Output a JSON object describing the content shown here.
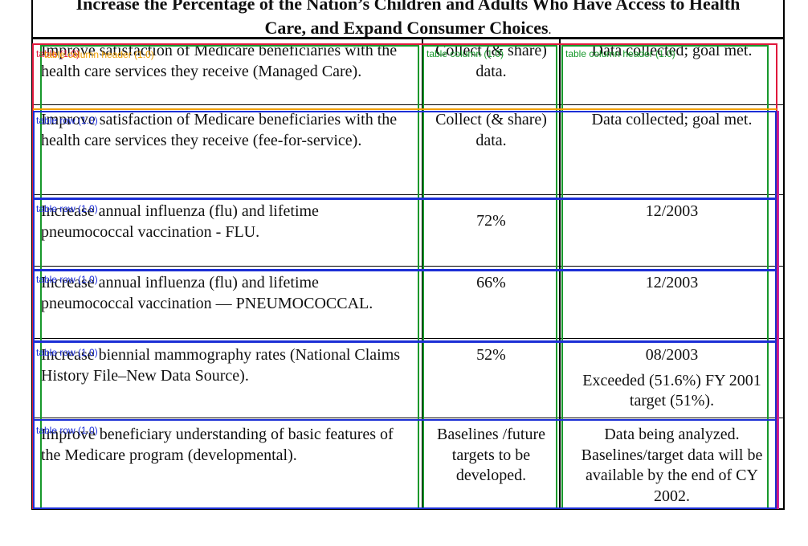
{
  "heading": {
    "line1": "Increase the Percentage of the Nation’s Children and Adults Who Have Access to Health",
    "line2": "Care, and Expand Consumer Choices",
    "line2_suffix": "."
  },
  "rows": [
    {
      "goal": "Improve satisfaction of Medicare beneficiaries with the health care services they receive (Managed Care).",
      "target": "Collect (& share) data.",
      "result": [
        "Data collected; goal met."
      ]
    },
    {
      "goal": "Improve satisfaction of Medicare beneficiaries with the health care services they receive (fee-for-service).",
      "target": "Collect (& share) data.",
      "result": [
        "Data collected; goal met."
      ]
    },
    {
      "goal": "Increase annual influenza (flu) and lifetime pneumococcal vaccination - FLU.",
      "target": "72%",
      "result": [
        "12/2003"
      ]
    },
    {
      "goal": "Increase annual influenza (flu) and lifetime pneumococcal vaccination — PNEUMOCOCCAL.",
      "target": "66%",
      "result": [
        "12/2003"
      ]
    },
    {
      "goal": "Increase biennial mammography rates (National Claims History File–New Data Source).",
      "target": "52%",
      "result": [
        "08/2003",
        "Exceeded (51.6%) FY 2001 target (51%)."
      ]
    },
    {
      "goal": "Improve beneficiary understanding of basic features of the Medicare program (developmental).",
      "target": "Baselines /future targets to be developed.",
      "result": [
        "Data being analyzed. Baselines/target data will be available by the end of CY 2002."
      ]
    }
  ],
  "annotations": {
    "table_label": "table (1.0)",
    "table_column_label": "table column (1.0)",
    "table_column_header_label": "table column header (1.0)",
    "table_row_label": "table row (1.0)",
    "colors": {
      "table": "#e0183c",
      "row": "#1c2fd6",
      "column": "#17982b",
      "header": "#f2a000",
      "spanning": "#c81fa8"
    }
  }
}
